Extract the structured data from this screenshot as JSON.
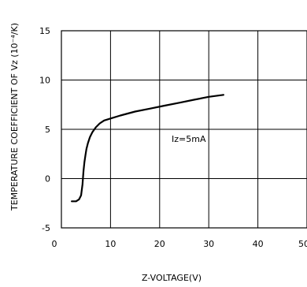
{
  "chart_data": {
    "type": "line",
    "title": "",
    "xlabel": "Z-VOLTAGE(V)",
    "ylabel": "TEMPERATURE COEFFICIENT OF Vz (10⁻⁴/K)",
    "xlim": [
      0,
      50
    ],
    "ylim": [
      -5,
      15
    ],
    "xticks": [
      0,
      10,
      20,
      30,
      40,
      50
    ],
    "yticks": [
      -5,
      0,
      5,
      10,
      15
    ],
    "xtick_labels": [
      "0",
      "10",
      "20",
      "30",
      "40",
      "50"
    ],
    "ytick_labels": [
      "-5",
      "0",
      "5",
      "10",
      "15"
    ],
    "grid": true,
    "annotation": "Iz=5mA",
    "series": [
      {
        "x": [
          2.1,
          3.0,
          3.6,
          4.0,
          4.3,
          4.5,
          4.7,
          4.9,
          5.1,
          5.4,
          5.8,
          6.3,
          7.0,
          7.8,
          8.7,
          10.0,
          12.0,
          15.0,
          18.0,
          21.0,
          24.0,
          27.0,
          30.0,
          33.0
        ],
        "y": [
          -2.3,
          -2.3,
          -2.1,
          -1.7,
          -0.6,
          0.8,
          1.7,
          2.4,
          3.0,
          3.6,
          4.2,
          4.7,
          5.2,
          5.6,
          5.9,
          6.1,
          6.4,
          6.8,
          7.1,
          7.4,
          7.7,
          8.0,
          8.3,
          8.5
        ]
      }
    ],
    "line_color": "#000000"
  }
}
